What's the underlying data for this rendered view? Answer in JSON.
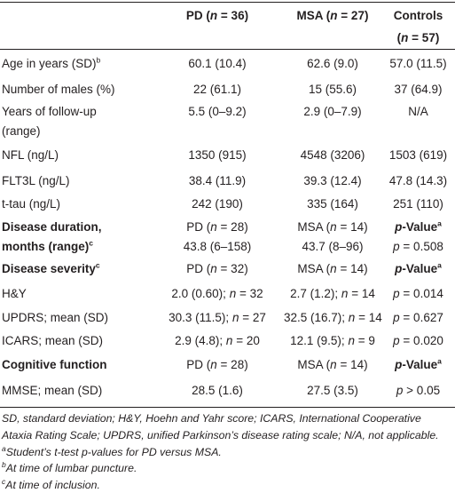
{
  "table": {
    "rows": [
      [
        "",
        [
          {
            "text": "PD (",
            "style": "b"
          },
          {
            "text": "n",
            "style": "bi"
          },
          {
            "text": " = 36)",
            "style": "b"
          }
        ],
        [
          {
            "text": "MSA (",
            "style": "b"
          },
          {
            "text": "n",
            "style": "bi"
          },
          {
            "text": " = 27)",
            "style": "b"
          }
        ],
        [
          {
            "text": "Controls",
            "style": "b"
          }
        ]
      ],
      [
        "",
        "",
        "",
        [
          {
            "text": "(",
            "style": "b"
          },
          {
            "text": "n",
            "style": "bi"
          },
          {
            "text": " = 57)",
            "style": "b"
          }
        ]
      ],
      [
        [
          "Age in years (SD)",
          {
            "text": "b",
            "style": "s"
          }
        ],
        "60.1 (10.4)",
        "62.6 (9.0)",
        "57.0 (11.5)"
      ],
      [
        "Number of males (%)",
        "22 (61.1)",
        "15 (55.6)",
        "37 (64.9)"
      ],
      [
        "Years of follow-up",
        "5.5 (0–9.2)",
        "2.9 (0–7.9)",
        "N/A"
      ],
      [
        "(range)",
        "",
        "",
        ""
      ],
      [
        "NFL (ng/L)",
        "1350 (915)",
        "4548 (3206)",
        "1503 (619)"
      ],
      [
        "FLT3L (ng/L)",
        "38.4 (11.9)",
        "39.3 (12.4)",
        "47.8 (14.3)"
      ],
      [
        "t-tau (ng/L)",
        "242 (190)",
        "335 (164)",
        "251 (110)"
      ],
      [
        [
          {
            "text": "Disease duration,",
            "style": "b"
          }
        ],
        [
          "PD (",
          {
            "text": "n",
            "style": "i"
          },
          " = 28)"
        ],
        [
          "MSA (",
          {
            "text": "n",
            "style": "i"
          },
          " = 14)"
        ],
        [
          {
            "text": "p",
            "style": "bi"
          },
          {
            "text": "-Value",
            "style": "b"
          },
          {
            "text": "a",
            "style": "bs"
          }
        ]
      ],
      [
        [
          {
            "text": "months (range)",
            "style": "b"
          },
          {
            "text": "c",
            "style": "bs"
          }
        ],
        "43.8 (6–158)",
        "43.7 (8–96)",
        [
          {
            "text": "p",
            "style": "i"
          },
          " = 0.508"
        ]
      ],
      [
        [
          {
            "text": "Disease severity",
            "style": "b"
          },
          {
            "text": "c",
            "style": "bs"
          }
        ],
        [
          "PD (",
          {
            "text": "n",
            "style": "i"
          },
          " = 32)"
        ],
        [
          "MSA (",
          {
            "text": "n",
            "style": "i"
          },
          " = 14)"
        ],
        [
          {
            "text": "p",
            "style": "bi"
          },
          {
            "text": "-Value",
            "style": "b"
          },
          {
            "text": "a",
            "style": "bs"
          }
        ]
      ],
      [
        "H&Y",
        [
          "2.0 (0.60); ",
          {
            "text": "n",
            "style": "i"
          },
          " = 32"
        ],
        [
          "2.7 (1.2); ",
          {
            "text": "n",
            "style": "i"
          },
          " = 14"
        ],
        [
          {
            "text": "p",
            "style": "i"
          },
          " = 0.014"
        ]
      ],
      [
        "UPDRS; mean (SD)",
        [
          "30.3 (11.5); ",
          {
            "text": "n",
            "style": "i"
          },
          " = 27"
        ],
        [
          "32.5 (16.7); ",
          {
            "text": "n",
            "style": "i"
          },
          " = 14"
        ],
        [
          {
            "text": "p",
            "style": "i"
          },
          " = 0.627"
        ]
      ],
      [
        "ICARS; mean (SD)",
        [
          "2.9 (4.8); ",
          {
            "text": "n",
            "style": "i"
          },
          " = 20"
        ],
        [
          "12.1 (9.5); ",
          {
            "text": "n",
            "style": "i"
          },
          " = 9"
        ],
        [
          {
            "text": "p",
            "style": "i"
          },
          " = 0.020"
        ]
      ],
      [
        [
          {
            "text": "Cognitive function",
            "style": "b"
          }
        ],
        [
          "PD (",
          {
            "text": "n",
            "style": "i"
          },
          " = 28)"
        ],
        [
          "MSA (",
          {
            "text": "n",
            "style": "i"
          },
          " = 14)"
        ],
        [
          {
            "text": "p",
            "style": "bi"
          },
          {
            "text": "-Value",
            "style": "b"
          },
          {
            "text": "a",
            "style": "bs"
          }
        ]
      ],
      [
        "MMSE; mean (SD)",
        "28.5 (1.6)",
        "27.5 (3.5)",
        [
          {
            "text": "p",
            "style": "i"
          },
          " > 0.05"
        ]
      ]
    ],
    "footnotes": [
      [
        {
          "text": "SD, standard deviation; H&Y, Hoehn and Yahr score; ICARS, International Cooperative Ataxia Rating Scale; UPDRS, unified Parkinson’s disease rating scale; N/A, not applicable.",
          "style": "i"
        }
      ],
      [
        {
          "text": "a",
          "style": "is"
        },
        {
          "text": "Student’s t-test p-values for PD versus MSA.",
          "style": "i"
        }
      ],
      [
        {
          "text": "b",
          "style": "is"
        },
        {
          "text": "At time of lumbar puncture.",
          "style": "i"
        }
      ],
      [
        {
          "text": "c",
          "style": "is"
        },
        {
          "text": "At time of inclusion.",
          "style": "i"
        }
      ]
    ]
  }
}
